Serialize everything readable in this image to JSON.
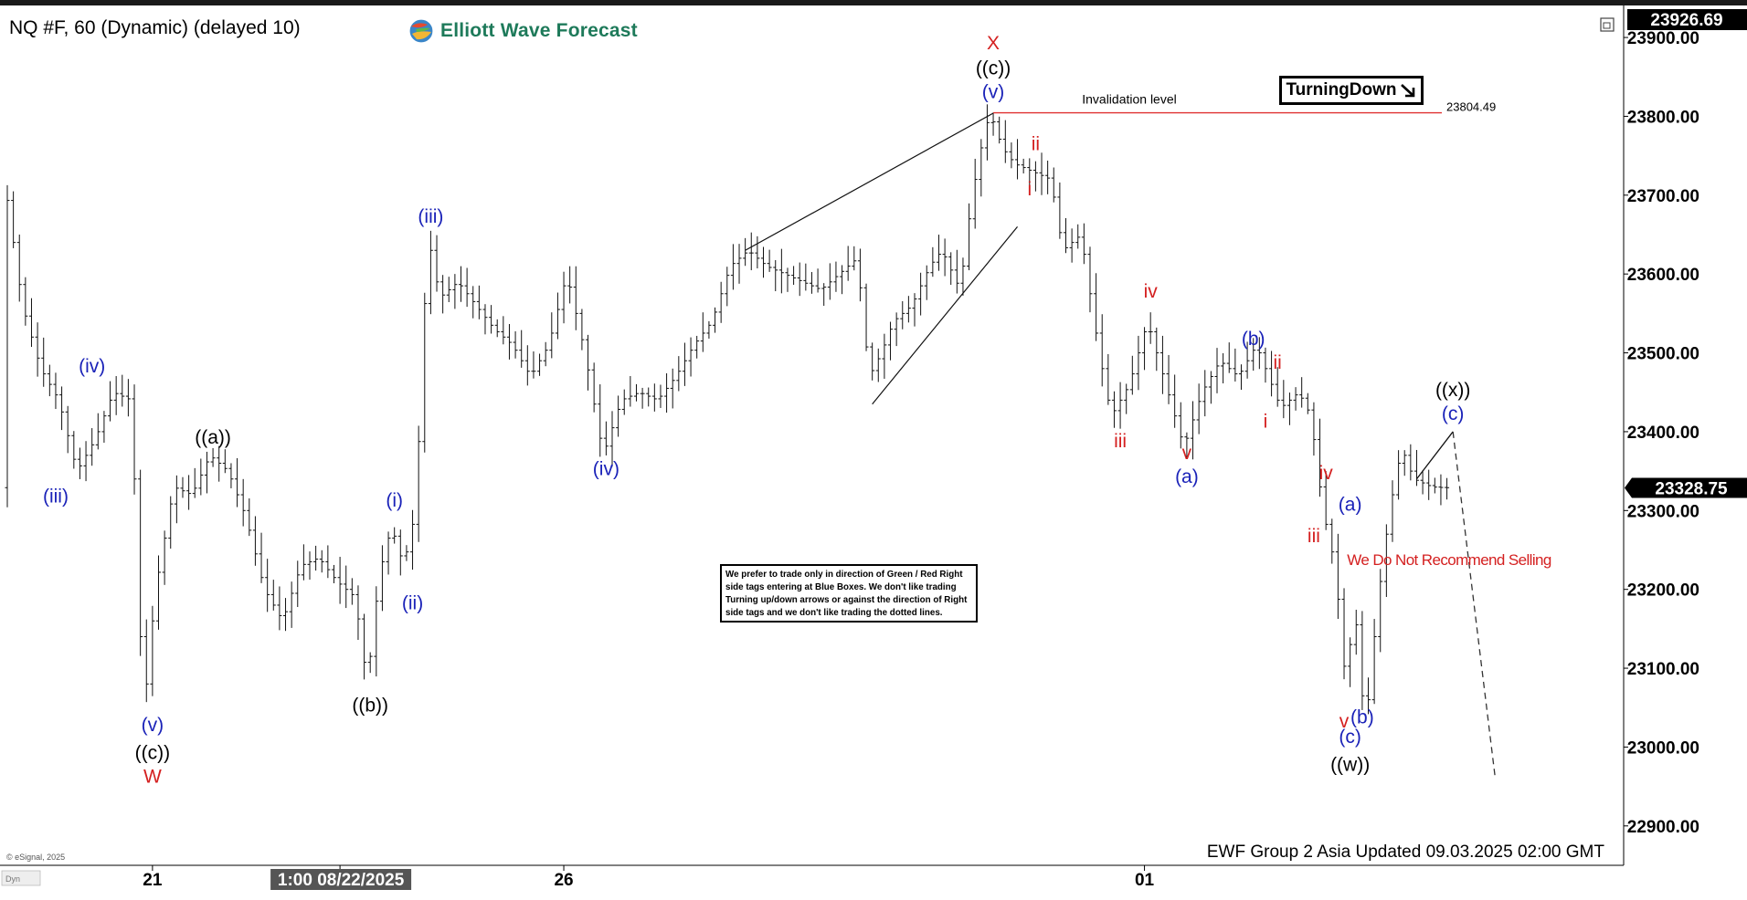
{
  "header": {
    "instrument_title": "NQ #F, 60 (Dynamic) (delayed 10)",
    "logo_text": "Elliott Wave Forecast",
    "logo_icon": "globe-icon"
  },
  "chart_data": {
    "type": "candlestick-ohlc",
    "instrument": "NQ #F",
    "timeframe": "60",
    "y_axis": {
      "min": 22850,
      "max": 23926.69,
      "ticks": [
        22900,
        23000,
        23100,
        23200,
        23300,
        23400,
        23500,
        23600,
        23700,
        23800,
        23900
      ],
      "tick_labels": [
        "22900.00",
        "23000.00",
        "23100.00",
        "23200.00",
        "23300.00",
        "23400.00",
        "23500.00",
        "23600.00",
        "23700.00",
        "23800.00",
        "23900.00"
      ],
      "high_label": "23926.69",
      "current_label": "23328.75",
      "current_value": 23328.75
    },
    "x_axis": {
      "labels": [
        {
          "text": "21",
          "bar": 24
        },
        {
          "text": "1:00 08/22/2025",
          "bar": 55,
          "highlight": true
        },
        {
          "text": "26",
          "bar": 92
        },
        {
          "text": "01",
          "bar": 188
        }
      ],
      "bar_count": 240
    },
    "price_path": [
      [
        0,
        23720
      ],
      [
        3,
        23560
      ],
      [
        6,
        23480
      ],
      [
        9,
        23440
      ],
      [
        12,
        23350
      ],
      [
        15,
        23390
      ],
      [
        18,
        23450
      ],
      [
        21,
        23440
      ],
      [
        23,
        23040
      ],
      [
        25,
        23200
      ],
      [
        28,
        23330
      ],
      [
        31,
        23320
      ],
      [
        34,
        23370
      ],
      [
        37,
        23350
      ],
      [
        40,
        23290
      ],
      [
        43,
        23200
      ],
      [
        46,
        23160
      ],
      [
        49,
        23230
      ],
      [
        52,
        23240
      ],
      [
        55,
        23210
      ],
      [
        58,
        23190
      ],
      [
        60,
        23080
      ],
      [
        62,
        23220
      ],
      [
        64,
        23280
      ],
      [
        66,
        23230
      ],
      [
        68,
        23300
      ],
      [
        70,
        23650
      ],
      [
        72,
        23570
      ],
      [
        75,
        23590
      ],
      [
        78,
        23560
      ],
      [
        81,
        23530
      ],
      [
        84,
        23510
      ],
      [
        87,
        23470
      ],
      [
        90,
        23510
      ],
      [
        93,
        23600
      ],
      [
        96,
        23500
      ],
      [
        99,
        23370
      ],
      [
        102,
        23440
      ],
      [
        105,
        23450
      ],
      [
        108,
        23440
      ],
      [
        111,
        23470
      ],
      [
        114,
        23510
      ],
      [
        117,
        23540
      ],
      [
        120,
        23610
      ],
      [
        123,
        23630
      ],
      [
        126,
        23610
      ],
      [
        129,
        23600
      ],
      [
        132,
        23590
      ],
      [
        135,
        23580
      ],
      [
        138,
        23600
      ],
      [
        141,
        23620
      ],
      [
        143,
        23470
      ],
      [
        145,
        23500
      ],
      [
        147,
        23540
      ],
      [
        150,
        23560
      ],
      [
        153,
        23610
      ],
      [
        155,
        23630
      ],
      [
        158,
        23580
      ],
      [
        160,
        23700
      ],
      [
        162,
        23780
      ],
      [
        163,
        23804
      ],
      [
        165,
        23760
      ],
      [
        167,
        23740
      ],
      [
        170,
        23730
      ],
      [
        173,
        23720
      ],
      [
        175,
        23630
      ],
      [
        178,
        23650
      ],
      [
        181,
        23500
      ],
      [
        183,
        23420
      ],
      [
        186,
        23460
      ],
      [
        189,
        23540
      ],
      [
        192,
        23460
      ],
      [
        195,
        23380
      ],
      [
        198,
        23450
      ],
      [
        201,
        23490
      ],
      [
        204,
        23470
      ],
      [
        207,
        23510
      ],
      [
        209,
        23470
      ],
      [
        211,
        23430
      ],
      [
        214,
        23450
      ],
      [
        216,
        23420
      ],
      [
        218,
        23300
      ],
      [
        220,
        23230
      ],
      [
        222,
        23060
      ],
      [
        223,
        23200
      ],
      [
        225,
        23020
      ],
      [
        227,
        23180
      ],
      [
        229,
        23300
      ],
      [
        231,
        23380
      ],
      [
        233,
        23340
      ],
      [
        236,
        23330
      ],
      [
        238,
        23329
      ]
    ],
    "invalidation": {
      "label": "Invalidation level",
      "value": 23804.49,
      "value_label": "23804.49"
    },
    "wave_labels": [
      {
        "text": "(iv)",
        "bar": 14,
        "price": 23475,
        "color": "#1a22b8"
      },
      {
        "text": "(iii)",
        "bar": 8,
        "price": 23310,
        "color": "#1a22b8"
      },
      {
        "text": "(v)",
        "bar": 24,
        "price": 23020,
        "color": "#1a22b8"
      },
      {
        "text": "((c))",
        "bar": 24,
        "price": 22985,
        "color": "#000000"
      },
      {
        "text": "W",
        "bar": 24,
        "price": 22955,
        "color": "#d42020"
      },
      {
        "text": "((a))",
        "bar": 34,
        "price": 23385,
        "color": "#000000"
      },
      {
        "text": "((b))",
        "bar": 60,
        "price": 23045,
        "color": "#000000"
      },
      {
        "text": "(i)",
        "bar": 64,
        "price": 23305,
        "color": "#1a22b8"
      },
      {
        "text": "(ii)",
        "bar": 67,
        "price": 23175,
        "color": "#1a22b8"
      },
      {
        "text": "(iii)",
        "bar": 70,
        "price": 23665,
        "color": "#1a22b8"
      },
      {
        "text": "(iv)",
        "bar": 99,
        "price": 23345,
        "color": "#1a22b8"
      },
      {
        "text": "X",
        "bar": 163,
        "price": 23885,
        "color": "#d42020"
      },
      {
        "text": "((c))",
        "bar": 163,
        "price": 23853,
        "color": "#000000"
      },
      {
        "text": "(v)",
        "bar": 163,
        "price": 23823,
        "color": "#1a22b8"
      },
      {
        "text": "ii",
        "bar": 170,
        "price": 23757,
        "color": "#d42020"
      },
      {
        "text": "i",
        "bar": 169,
        "price": 23700,
        "color": "#d42020"
      },
      {
        "text": "iii",
        "bar": 184,
        "price": 23380,
        "color": "#d42020"
      },
      {
        "text": "iv",
        "bar": 189,
        "price": 23570,
        "color": "#d42020"
      },
      {
        "text": "v",
        "bar": 195,
        "price": 23365,
        "color": "#d42020"
      },
      {
        "text": "(a)",
        "bar": 195,
        "price": 23335,
        "color": "#1a22b8"
      },
      {
        "text": "(b)",
        "bar": 206,
        "price": 23510,
        "color": "#1a22b8"
      },
      {
        "text": "ii",
        "bar": 210,
        "price": 23480,
        "color": "#d42020"
      },
      {
        "text": "i",
        "bar": 208,
        "price": 23405,
        "color": "#d42020"
      },
      {
        "text": "iv",
        "bar": 218,
        "price": 23340,
        "color": "#d42020"
      },
      {
        "text": "iii",
        "bar": 216,
        "price": 23260,
        "color": "#d42020"
      },
      {
        "text": "(a)",
        "bar": 222,
        "price": 23300,
        "color": "#1a22b8"
      },
      {
        "text": "v",
        "bar": 221,
        "price": 23025,
        "color": "#d42020"
      },
      {
        "text": "(b)",
        "bar": 224,
        "price": 23030,
        "color": "#1a22b8"
      },
      {
        "text": "(c)",
        "bar": 222,
        "price": 23005,
        "color": "#1a22b8"
      },
      {
        "text": "((w))",
        "bar": 222,
        "price": 22970,
        "color": "#000000"
      },
      {
        "text": "((x))",
        "bar": 239,
        "price": 23445,
        "color": "#000000"
      },
      {
        "text": "(c)",
        "bar": 239,
        "price": 23415,
        "color": "#1a22b8"
      }
    ],
    "trendlines": [
      {
        "from": [
          122,
          23630
        ],
        "to": [
          163,
          23804
        ]
      },
      {
        "from": [
          143,
          23435
        ],
        "to": [
          167,
          23660
        ]
      }
    ],
    "projection": {
      "solid": [
        [
          233,
          23340
        ],
        [
          239,
          23400
        ]
      ],
      "dashed": [
        [
          239,
          23400
        ],
        [
          246,
          22960
        ]
      ]
    },
    "annotations": {
      "sell_warning": "We Do Not Recommend Selling",
      "turning_label": "TurningDown",
      "turning_icon": "arrow-down-right-icon"
    }
  },
  "disclaimer": "We prefer to trade only in direction of Green / Red Right side tags entering at Blue Boxes. We don't like trading Turning up/down arrows or against the direction of Right side tags and we don't like trading the dotted lines.",
  "footer": {
    "updated_text": "EWF Group 2 Asia Updated 09.03.2025 02:00 GMT",
    "copyright": "© eSignal, 2025",
    "corner_label": "Dyn"
  },
  "colors": {
    "blue_label": "#1a22b8",
    "red_label": "#d42020",
    "invalidation_line": "#e03030",
    "logo_green": "#1e7a5a"
  }
}
